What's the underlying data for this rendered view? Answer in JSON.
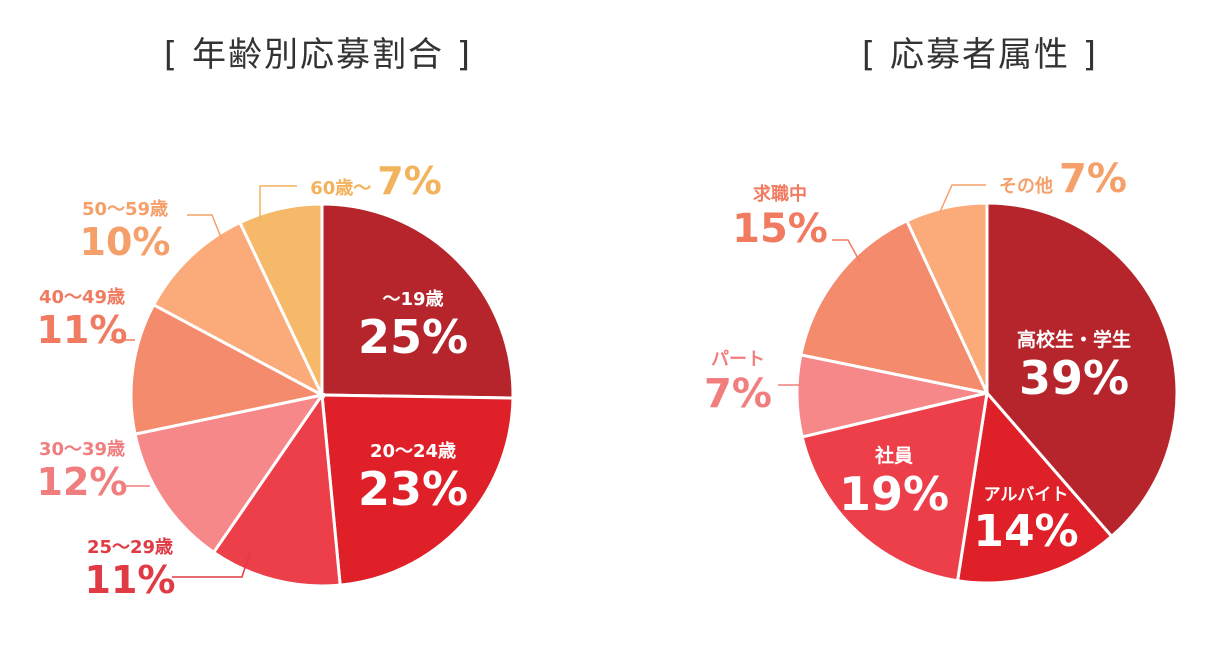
{
  "chart_data": [
    {
      "type": "pie",
      "title": "[ 年齢別応募割合 ]",
      "slices": [
        {
          "label": "～19歳",
          "value": 25,
          "display": "25%",
          "color": "#b5252b"
        },
        {
          "label": "20～24歳",
          "value": 23,
          "display": "23%",
          "color": "#df2028"
        },
        {
          "label": "25～29歳",
          "value": 11,
          "display": "11%",
          "color": "#ec3f4a"
        },
        {
          "label": "30～39歳",
          "value": 12,
          "display": "12%",
          "color": "#f6888a"
        },
        {
          "label": "40～49歳",
          "value": 11,
          "display": "11%",
          "color": "#f38b6c"
        },
        {
          "label": "50～59歳",
          "value": 10,
          "display": "10%",
          "color": "#fbab7a"
        },
        {
          "label": "60歳～",
          "value": 7,
          "display": "7%",
          "color": "#f6b96a"
        }
      ]
    },
    {
      "type": "pie",
      "title": "[ 応募者属性 ]",
      "slices": [
        {
          "label": "高校生・学生",
          "value": 39,
          "display": "39%",
          "color": "#b5252b"
        },
        {
          "label": "アルバイト",
          "value": 14,
          "display": "14%",
          "color": "#df2028"
        },
        {
          "label": "社員",
          "value": 19,
          "display": "19%",
          "color": "#ec3f4a"
        },
        {
          "label": "パート",
          "value": 7,
          "display": "7%",
          "color": "#f6888a"
        },
        {
          "label": "求職中",
          "value": 15,
          "display": "15%",
          "color": "#f38b6c"
        },
        {
          "label": "その他",
          "value": 7,
          "display": "7%",
          "color": "#fbab7a"
        }
      ]
    }
  ]
}
